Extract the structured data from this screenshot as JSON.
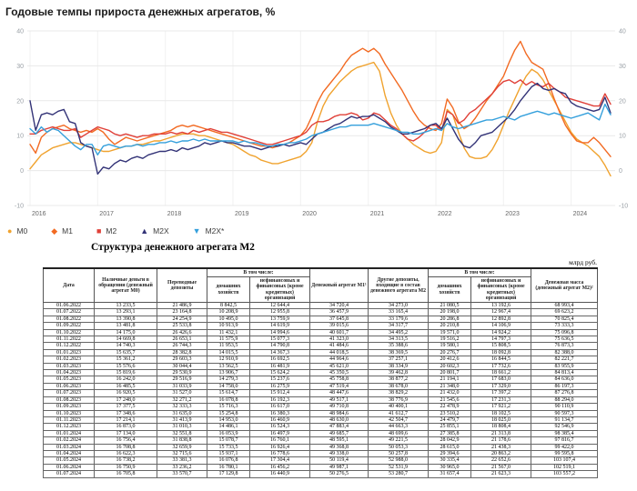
{
  "chart_data": {
    "type": "line",
    "title": "Годовые темпы прироста денежных агрегатов, %",
    "x_tick_labels": [
      "2016",
      "2017",
      "2018",
      "2019",
      "2020",
      "2021",
      "2022",
      "2023",
      "2024"
    ],
    "y_ticks": [
      40,
      30,
      20,
      10,
      0,
      -10
    ],
    "ylim": [
      -10,
      40
    ],
    "x_range": "monthly, Jan 2016 - Aug 2024",
    "grid": true,
    "legend_position": "bottom-left",
    "series": [
      {
        "name": "M0",
        "color": "#F0A32F",
        "marker": "circle",
        "values": [
          0.5,
          2.5,
          4.5,
          5.5,
          6.5,
          7,
          7.5,
          8,
          8,
          7.5,
          7,
          6.5,
          6,
          5.5,
          5.5,
          6,
          6.5,
          7,
          7,
          7.5,
          7.5,
          8,
          8.5,
          8.5,
          9,
          9.5,
          10,
          10.5,
          10.5,
          10.5,
          10,
          10,
          9.5,
          9,
          8.5,
          8,
          7.5,
          6.5,
          5.5,
          4.5,
          4,
          3,
          2.5,
          2,
          2,
          2.5,
          3,
          3.5,
          4,
          5.5,
          8,
          14,
          18.5,
          21.5,
          23.5,
          25.5,
          27,
          28.5,
          29.5,
          30,
          30.5,
          31,
          28.5,
          21.5,
          16.5,
          13,
          10.5,
          9,
          7.5,
          6.5,
          5.5,
          5,
          5.5,
          8,
          17.5,
          16,
          11,
          6.5,
          4,
          3.5,
          3.5,
          4,
          6,
          9,
          13,
          17,
          20.5,
          24,
          27,
          29,
          28,
          26,
          23,
          20,
          17,
          14,
          11,
          9,
          8,
          7,
          5.5,
          4,
          1.5,
          -1.5
        ]
      },
      {
        "name": "M1",
        "color": "#F26A22",
        "marker": "diamond",
        "values": [
          7.5,
          5,
          9.5,
          11,
          12,
          12.5,
          13,
          12,
          11.5,
          11,
          11.5,
          11,
          12,
          11,
          9,
          7.5,
          8.5,
          9.5,
          9,
          8.5,
          9,
          9.5,
          10,
          10.5,
          11,
          11.5,
          12.5,
          13,
          12.5,
          13,
          12.5,
          12,
          11.5,
          11,
          10.5,
          10,
          9.5,
          9,
          8.5,
          8,
          7.5,
          7,
          7,
          6.5,
          7,
          7.5,
          8,
          9,
          10,
          12,
          15.5,
          19.5,
          22.5,
          24.5,
          26.5,
          28.5,
          31,
          33,
          34,
          35,
          34,
          35,
          33.5,
          30.5,
          28,
          25.5,
          23,
          20,
          17,
          14.5,
          13,
          12,
          11.5,
          13.5,
          20.5,
          18,
          14,
          12,
          13,
          15,
          17.5,
          20,
          22,
          24.5,
          27,
          31,
          34.5,
          37,
          33.5,
          31,
          30,
          29,
          25,
          20.5,
          16.5,
          13,
          10.5,
          8.5,
          8,
          8,
          9.5,
          8,
          6,
          4
        ]
      },
      {
        "name": "M2",
        "color": "#E04038",
        "marker": "square",
        "values": [
          10.5,
          10.5,
          11.5,
          12,
          12.5,
          12,
          11.5,
          11.5,
          12,
          9.5,
          10.5,
          11.5,
          12.5,
          12,
          11.5,
          10.5,
          10,
          10.5,
          10,
          9.5,
          10,
          10,
          10.5,
          10.5,
          10.5,
          11,
          10.5,
          11,
          10.5,
          11.5,
          11,
          11.5,
          12,
          11.5,
          11,
          11,
          10.5,
          10,
          9.5,
          9,
          8.5,
          8,
          7.5,
          7.5,
          8,
          8.5,
          9,
          9.5,
          10,
          11,
          13,
          14,
          14,
          14.5,
          15.5,
          16,
          16,
          16.5,
          16,
          14.5,
          15,
          16.5,
          16,
          14.5,
          13,
          12,
          10.5,
          9,
          8.5,
          9.5,
          11,
          13,
          13,
          11.5,
          17,
          16,
          13.5,
          14.5,
          16.5,
          17.5,
          19,
          20.5,
          22,
          24,
          25.5,
          26,
          25,
          26,
          24.5,
          25.5,
          24.5,
          24,
          25,
          23.5,
          22.5,
          21,
          20.5,
          20,
          19.5,
          19,
          18.5,
          18.5,
          22,
          19
        ]
      },
      {
        "name": "M2X",
        "color": "#333377",
        "marker": "triangle-up",
        "values": [
          20,
          11.5,
          16,
          16.5,
          16,
          17,
          17.5,
          14,
          13.5,
          8,
          7,
          6.5,
          -1,
          1,
          0.5,
          2,
          3,
          2.5,
          3.5,
          4,
          3.5,
          4.5,
          5,
          5.5,
          5.5,
          6,
          5.5,
          6.5,
          6,
          6.5,
          7,
          8,
          7.5,
          8,
          8.5,
          8,
          8,
          7.5,
          7,
          7,
          6.5,
          6,
          6.5,
          7,
          7,
          7.5,
          7,
          7.5,
          8,
          7.5,
          9,
          10.5,
          11,
          12,
          13,
          13.5,
          14.5,
          15.5,
          15,
          15.5,
          15.5,
          16,
          15,
          14,
          12.5,
          11.5,
          10.5,
          10.5,
          11,
          11.5,
          12,
          13,
          13.5,
          12,
          15,
          12,
          9,
          7,
          6.5,
          8,
          10,
          10.5,
          11,
          12.5,
          14,
          15.5,
          17.5,
          20,
          22,
          24,
          25,
          23.5,
          23,
          23.5,
          22.5,
          22,
          19.5,
          18.5,
          18,
          17.5,
          17,
          17.5,
          21,
          16.5
        ]
      },
      {
        "name": "M2X*",
        "color": "#35A0DC",
        "marker": "triangle-down",
        "values": [
          12,
          10.5,
          12.5,
          11,
          12,
          11.5,
          10,
          8.5,
          7,
          6,
          7.5,
          7.5,
          4.5,
          7,
          7.5,
          7,
          6.5,
          7,
          7,
          7.5,
          7,
          7.5,
          7.5,
          8,
          8,
          8.5,
          8,
          8.5,
          8.5,
          9,
          8.5,
          9,
          8.5,
          8.5,
          8.5,
          8.5,
          8.5,
          8,
          8.5,
          8,
          8,
          7.5,
          7,
          7,
          7.5,
          7.5,
          8,
          8,
          8.5,
          9,
          10,
          10.5,
          11,
          11.5,
          12,
          12.5,
          12.5,
          13,
          13,
          13,
          13,
          13.5,
          13,
          12.5,
          12,
          11.5,
          11,
          11,
          10.5,
          10.5,
          11,
          11.5,
          12,
          11.5,
          13.5,
          12.5,
          12,
          12.5,
          13,
          13.5,
          14,
          14.5,
          14.5,
          15,
          15.5,
          15,
          14.5,
          15.5,
          16,
          16.5,
          17,
          16.5,
          16,
          16.5,
          16,
          15.5,
          15,
          15.5,
          16,
          16.5,
          15.5,
          14.5,
          19,
          16
        ]
      }
    ]
  },
  "table": {
    "title": "Структура денежного агрегата М2",
    "unit": "млрд руб.",
    "headers": {
      "date": "Дата",
      "m0": "Наличные деньги в обращении (денежный агрегат М0)",
      "transferable": "Переводные депозиты",
      "including1": "В том числе:",
      "households1": "домашних хозяйств",
      "orgs1": "нефинансовых и финансовых (кроме кредитных) организаций",
      "m1": "Денежный агрегат М1¹",
      "other_deposits": "Другие депозиты, входящие в состав денежного агрегата М2",
      "including2": "В том числе:",
      "households2": "домашних хозяйств",
      "orgs2": "нефинансовых и финансовых (кроме кредитных) организаций",
      "m2": "Денежная масса (денежный агрегат М2)²"
    },
    "rows": [
      [
        "01.06.2022",
        "13 233,5",
        "21 486,9",
        "8 842,5",
        "12 644,4",
        "34 720,4",
        "34 273,0",
        "21 080,5",
        "13 192,6",
        "68 993,4"
      ],
      [
        "01.07.2022",
        "13 293,1",
        "23 164,8",
        "10 208,9",
        "12 955,8",
        "36 457,9",
        "33 165,4",
        "20 198,0",
        "12 967,4",
        "69 623,2"
      ],
      [
        "01.08.2022",
        "13 390,8",
        "24 254,9",
        "10 495,0",
        "13 759,9",
        "37 645,8",
        "33 179,6",
        "20 286,8",
        "12 892,8",
        "70 825,4"
      ],
      [
        "01.09.2022",
        "13 481,8",
        "25 533,8",
        "10 913,9",
        "14 619,9",
        "39 015,6",
        "34 317,7",
        "20 210,8",
        "14 106,9",
        "73 333,3"
      ],
      [
        "01.10.2022",
        "14 175,0",
        "26 426,6",
        "11 432,1",
        "14 994,6",
        "40 601,7",
        "34 495,2",
        "19 571,0",
        "14 924,2",
        "75 096,8"
      ],
      [
        "01.11.2022",
        "14 669,8",
        "26 653,1",
        "11 575,9",
        "15 077,3",
        "41 323,0",
        "34 313,5",
        "19 516,2",
        "14 797,3",
        "75 636,5"
      ],
      [
        "01.12.2022",
        "14 740,3",
        "26 744,3",
        "11 953,5",
        "14 790,8",
        "41 484,6",
        "35 388,6",
        "19 580,1",
        "15 808,5",
        "76 873,3"
      ],
      [
        "01.01.2023",
        "15 635,7",
        "28 382,8",
        "14 015,5",
        "14 367,3",
        "44 018,5",
        "38 369,5",
        "20 276,7",
        "18 092,8",
        "82 388,0"
      ],
      [
        "01.02.2023",
        "15 361,2",
        "29 603,3",
        "12 910,9",
        "16 692,5",
        "44 964,6",
        "37 257,1",
        "20 412,6",
        "16 844,5",
        "82 221,7"
      ],
      [
        "01.03.2023",
        "15 576,6",
        "30 044,4",
        "13 562,5",
        "16 481,9",
        "45 621,0",
        "38 334,9",
        "20 602,3",
        "17 732,6",
        "83 955,9"
      ],
      [
        "01.04.2023",
        "15 819,6",
        "29 530,9",
        "13 906,7",
        "15 624,2",
        "45 350,5",
        "39 462,8",
        "20 801,7",
        "18 661,2",
        "84 813,4"
      ],
      [
        "01.05.2023",
        "16 242,0",
        "29 516,9",
        "14 279,3",
        "15 237,6",
        "45 758,8",
        "38 877,2",
        "21 194,1",
        "17 683,0",
        "84 636,0"
      ],
      [
        "01.06.2023",
        "16 485,5",
        "31 033,9",
        "14 758,0",
        "16 275,9",
        "47 519,4",
        "38 678,0",
        "21 348,0",
        "17 329,0",
        "86 197,3"
      ],
      [
        "01.07.2023",
        "16 920,5",
        "31 527,0",
        "15 614,7",
        "15 912,4",
        "48 447,6",
        "38 829,2",
        "21 432,0",
        "17 397,2",
        "87 276,8"
      ],
      [
        "01.08.2023",
        "17 248,0",
        "32 271,2",
        "16 078,8",
        "16 192,3",
        "49 517,1",
        "38 776,9",
        "21 545,6",
        "17 231,3",
        "88 294,0"
      ],
      [
        "01.09.2023",
        "17 377,5",
        "32 333,3",
        "15 716,3",
        "16 617,0",
        "49 710,8",
        "40 400,1",
        "22 478,9",
        "17 921,2",
        "90 110,9"
      ],
      [
        "01.10.2023",
        "17 348,6",
        "31 635,0",
        "15 254,8",
        "16 380,3",
        "48 984,6",
        "41 612,7",
        "23 510,2",
        "18 102,5",
        "90 597,3"
      ],
      [
        "01.11.2023",
        "17 214,1",
        "31 413,9",
        "14 953,0",
        "16 460,9",
        "48 630,0",
        "42 504,7",
        "24 479,7",
        "18 025,0",
        "91 134,7"
      ],
      [
        "01.12.2023",
        "16 873,0",
        "31 010,3",
        "14 486,1",
        "16 524,3",
        "47 883,4",
        "44 663,3",
        "25 855,1",
        "18 808,4",
        "92 546,9"
      ],
      [
        "01.01.2024",
        "17 134,0",
        "32 551,8",
        "16 053,9",
        "16 497,9",
        "49 685,7",
        "48 699,6",
        "27 385,8",
        "21 313,8",
        "98 385,4"
      ],
      [
        "01.02.2024",
        "16 756,4",
        "31 838,8",
        "15 078,7",
        "16 760,1",
        "48 595,1",
        "49 221,5",
        "28 042,9",
        "21 178,6",
        "97 816,7"
      ],
      [
        "01.03.2024",
        "16 708,8",
        "32 659,9",
        "15 733,5",
        "16 926,4",
        "49 368,8",
        "50 053,3",
        "28 615,0",
        "21 438,3",
        "99 422,0"
      ],
      [
        "01.04.2024",
        "16 622,3",
        "32 715,6",
        "15 937,1",
        "16 778,6",
        "49 338,0",
        "50 257,8",
        "29 394,6",
        "20 863,2",
        "99 595,8"
      ],
      [
        "01.05.2024",
        "16 738,2",
        "33 381,3",
        "16 076,8",
        "17 304,4",
        "50 119,4",
        "52 988,0",
        "30 335,4",
        "22 652,6",
        "103 107,4"
      ],
      [
        "01.06.2024",
        "16 750,9",
        "33 236,2",
        "16 780,1",
        "16 456,2",
        "49 987,1",
        "52 531,9",
        "30 965,0",
        "21 567,0",
        "102 519,1"
      ],
      [
        "01.07.2024",
        "16 705,8",
        "33 570,7",
        "17 129,8",
        "16 440,9",
        "50 276,5",
        "53 280,7",
        "31 657,4",
        "21 623,3",
        "103 557,2"
      ]
    ]
  }
}
